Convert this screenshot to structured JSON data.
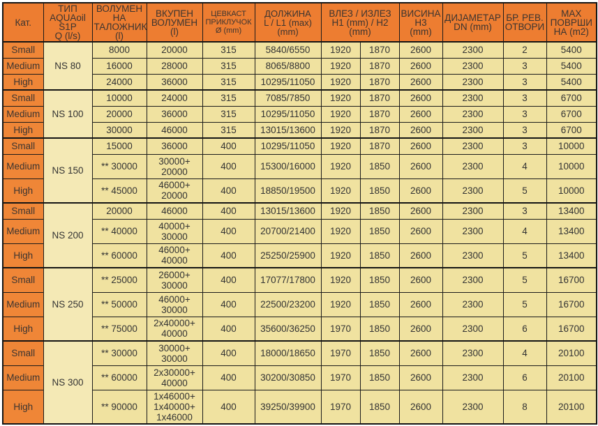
{
  "colors": {
    "header_bg": "#ED7D31",
    "category_bg": "#EF8637",
    "type_column_bg": "#F4E9B5",
    "data_cell_bg": "#F0E2A0",
    "border": "#141414",
    "text": "#333333"
  },
  "table": {
    "header_cells": [
      {
        "id": "kat",
        "label": "Кат.",
        "colspan": 1
      },
      {
        "id": "tip",
        "label": "ТИП\nAQUAoil\nS1P\nQ (l/s)",
        "colspan": 1
      },
      {
        "id": "volumen-na-talozhnik",
        "label": "ВОЛУМЕН\nНА\nТАЛОЖНИК\n(l)",
        "colspan": 1
      },
      {
        "id": "vkupen-volumen",
        "label": "ВКУПЕН\nВОЛУМЕН\n(l)",
        "colspan": 1
      },
      {
        "id": "cevkast-prikluchok",
        "label": "ЦЕВКАСТ\nПРИКЛУЧОК\nØ (mm)",
        "colspan": 1
      },
      {
        "id": "dolzhina",
        "label": "ДОЛЖИНА\nL / L1 (max)\n(mm)",
        "colspan": 1
      },
      {
        "id": "vlez-izlez",
        "label": "ВЛЕЗ / ИЗЛЕЗ\nH1 (mm) / H2\n(mm)",
        "colspan": 2
      },
      {
        "id": "visina",
        "label": "ВИСИНА\nH3\n(mm)",
        "colspan": 1
      },
      {
        "id": "dijametar",
        "label": "ДИЈАМЕТАР\nDN (mm)",
        "colspan": 1
      },
      {
        "id": "br-rev-otvori",
        "label": "БР. РЕВ.\nОТВОРИ",
        "colspan": 1
      },
      {
        "id": "max-povrshina",
        "label": "MAX\nПОВРШИ\nНА (m2)",
        "colspan": 1
      }
    ]
  },
  "chart_data": {
    "type": "table",
    "columns": [
      "Кат.",
      "ТИП AQUAoil S1P Q (l/s)",
      "ВОЛУМЕН НА ТАЛОЖНИК (l)",
      "ВКУПЕН ВОЛУМЕН (l)",
      "ЦЕВКАСТ ПРИКЛУЧОК Ø (mm)",
      "ДОЛЖИНА L / L1 (max) (mm)",
      "ВЛЕЗ H1 (mm)",
      "ИЗЛЕЗ H2 (mm)",
      "ВИСИНА H3 (mm)",
      "ДИЈАМЕТАР DN (mm)",
      "БР. РЕВ. ОТВОРИ",
      "MAX ПОВРШИНА (m2)"
    ],
    "groups": [
      {
        "type": "NS 80",
        "rows": [
          {
            "cat": "Small",
            "h": 1,
            "values": [
              "8000",
              "20000",
              "315",
              "5840/6550",
              "1920",
              "1870",
              "2600",
              "2300",
              "2",
              "5400"
            ]
          },
          {
            "cat": "Medium",
            "h": 1,
            "values": [
              "16000",
              "28000",
              "315",
              "8065/8800",
              "1920",
              "1870",
              "2600",
              "2300",
              "3",
              "5400"
            ]
          },
          {
            "cat": "High",
            "h": 1,
            "values": [
              "24000",
              "36000",
              "315",
              "10295/11050",
              "1920",
              "1870",
              "2600",
              "2300",
              "3",
              "5400"
            ]
          }
        ]
      },
      {
        "type": "NS 100",
        "rows": [
          {
            "cat": "Small",
            "h": 1,
            "values": [
              "10000",
              "24000",
              "315",
              "7085/7850",
              "1920",
              "1870",
              "2600",
              "2300",
              "3",
              "6700"
            ]
          },
          {
            "cat": "Medium",
            "h": 1,
            "values": [
              "20000",
              "36000",
              "315",
              "10295/11050",
              "1920",
              "1870",
              "2600",
              "2300",
              "3",
              "6700"
            ]
          },
          {
            "cat": "High",
            "h": 1,
            "values": [
              "30000",
              "46000",
              "315",
              "13015/13600",
              "1920",
              "1870",
              "2600",
              "2300",
              "3",
              "6700"
            ]
          }
        ]
      },
      {
        "type": "NS 150",
        "rows": [
          {
            "cat": "Small",
            "h": 1,
            "values": [
              "15000",
              "36000",
              "400",
              "10295/11050",
              "1920",
              "1870",
              "2600",
              "2300",
              "3",
              "10000"
            ]
          },
          {
            "cat": "Medium",
            "h": 2,
            "values": [
              "** 30000",
              "30000+\n20000",
              "400",
              "15300/16000",
              "1920",
              "1850",
              "2600",
              "2300",
              "4",
              "10000"
            ]
          },
          {
            "cat": "High",
            "h": 2,
            "values": [
              "** 45000",
              "46000+\n20000",
              "400",
              "18850/19500",
              "1920",
              "1850",
              "2600",
              "2300",
              "5",
              "10000"
            ]
          }
        ]
      },
      {
        "type": "NS 200",
        "rows": [
          {
            "cat": "Small",
            "h": 1,
            "values": [
              "20000",
              "46000",
              "400",
              "13015/13600",
              "1920",
              "1850",
              "2600",
              "2300",
              "3",
              "13400"
            ]
          },
          {
            "cat": "Medium",
            "h": 2,
            "values": [
              "** 40000",
              "40000+\n30000",
              "400",
              "20700/21400",
              "1920",
              "1850",
              "2600",
              "2300",
              "4",
              "13400"
            ]
          },
          {
            "cat": "High",
            "h": 2,
            "values": [
              "** 60000",
              "46000+\n40000",
              "400",
              "25250/25900",
              "1920",
              "1850",
              "2600",
              "2300",
              "5",
              "13400"
            ]
          }
        ]
      },
      {
        "type": "NS 250",
        "rows": [
          {
            "cat": "Small",
            "h": 2,
            "values": [
              "** 25000",
              "26000+\n30000",
              "400",
              "17077/17800",
              "1920",
              "1850",
              "2600",
              "2300",
              "5",
              "16700"
            ]
          },
          {
            "cat": "Medium",
            "h": 2,
            "values": [
              "** 50000",
              "46000+\n30000",
              "400",
              "22500/23200",
              "1920",
              "1850",
              "2600",
              "2300",
              "5",
              "16700"
            ]
          },
          {
            "cat": "High",
            "h": 2,
            "values": [
              "** 75000",
              "2x40000+\n40000",
              "400",
              "35600/36250",
              "1970",
              "1850",
              "2600",
              "2300",
              "6",
              "16700"
            ]
          }
        ]
      },
      {
        "type": "NS 300",
        "rows": [
          {
            "cat": "Small",
            "h": 2,
            "values": [
              "** 30000",
              "30000+\n30000",
              "400",
              "18000/18650",
              "1970",
              "1850",
              "2600",
              "2300",
              "4",
              "20100"
            ]
          },
          {
            "cat": "Medium",
            "h": 2,
            "values": [
              "** 60000",
              "2x30000+\n40000",
              "400",
              "30200/30850",
              "1970",
              "1850",
              "2600",
              "2300",
              "6",
              "20100"
            ]
          },
          {
            "cat": "High",
            "h": 3,
            "values": [
              "** 90000",
              "1x46000+\n1x40000+\n1x46000",
              "400",
              "39250/39900",
              "1970",
              "1850",
              "2600",
              "2300",
              "8",
              "20100"
            ]
          }
        ]
      }
    ]
  }
}
